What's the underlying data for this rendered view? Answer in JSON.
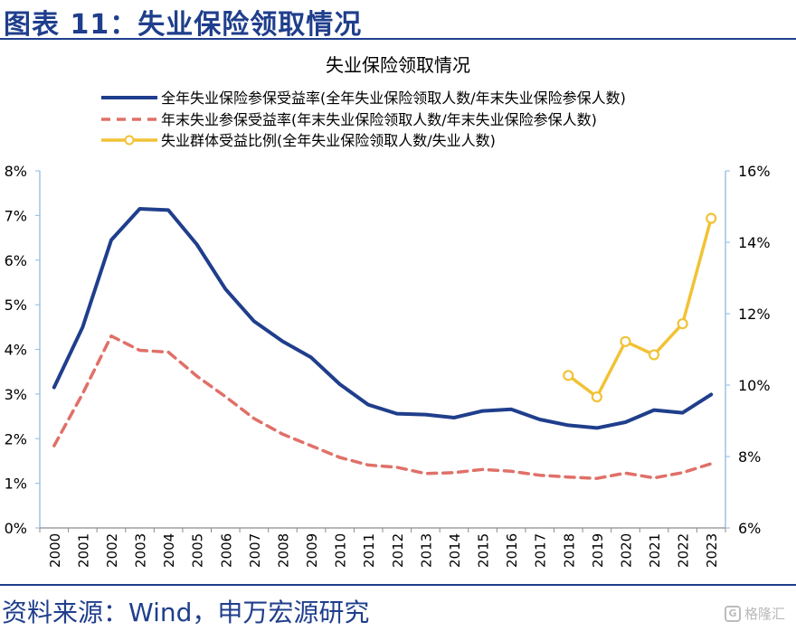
{
  "header": {
    "title": "图表 11：失业保险领取情况"
  },
  "footer": {
    "source": "资料来源：Wind，申万宏源研究"
  },
  "watermark": {
    "icon": "watermark-logo-icon",
    "text": "格隆汇"
  },
  "colors": {
    "blue": "#1f3e8c",
    "red": "#e07068",
    "yellow": "#f2c235",
    "axis": "#9dc3e6"
  },
  "chart_data": {
    "type": "line",
    "title": "失业保险领取情况",
    "x": [
      "2000",
      "2001",
      "2002",
      "2003",
      "2004",
      "2005",
      "2006",
      "2007",
      "2008",
      "2009",
      "2010",
      "2011",
      "2012",
      "2013",
      "2014",
      "2015",
      "2016",
      "2017",
      "2018",
      "2019",
      "2020",
      "2021",
      "2022",
      "2023"
    ],
    "y_left": {
      "min": 0,
      "max": 8,
      "step": 1,
      "ticks": [
        "0%",
        "1%",
        "2%",
        "3%",
        "4%",
        "5%",
        "6%",
        "7%",
        "8%"
      ]
    },
    "y_right": {
      "min": 6,
      "max": 16,
      "step": 2,
      "ticks": [
        "6%",
        "8%",
        "10%",
        "12%",
        "14%",
        "16%"
      ]
    },
    "legend_position": "top",
    "grid": false,
    "series": [
      {
        "name": "全年失业保险参保受益率(全年失业保险领取人数/年末失业保险参保人数)",
        "axis": "left",
        "style": "solid",
        "values": [
          3.15,
          4.5,
          6.45,
          7.15,
          7.12,
          6.35,
          5.35,
          4.63,
          4.18,
          3.82,
          3.22,
          2.76,
          2.56,
          2.54,
          2.47,
          2.62,
          2.66,
          2.43,
          2.3,
          2.24,
          2.37,
          2.64,
          2.58,
          2.99
        ]
      },
      {
        "name": "年末失业参保受益率(年末失业保险领取人数/年末失业保险参保人数)",
        "axis": "left",
        "style": "dashed",
        "values": [
          1.84,
          3.01,
          4.3,
          3.98,
          3.94,
          3.4,
          2.94,
          2.45,
          2.1,
          1.84,
          1.58,
          1.41,
          1.36,
          1.22,
          1.24,
          1.31,
          1.27,
          1.18,
          1.14,
          1.11,
          1.23,
          1.12,
          1.24,
          1.44
        ]
      },
      {
        "name": "失业群体受益比例(全年失业保险领取人数/失业人数)",
        "axis": "right",
        "style": "marker",
        "values": [
          null,
          null,
          null,
          null,
          null,
          null,
          null,
          null,
          null,
          null,
          null,
          null,
          null,
          null,
          null,
          null,
          null,
          null,
          10.27,
          9.67,
          11.22,
          10.85,
          11.72,
          14.67
        ]
      }
    ]
  }
}
